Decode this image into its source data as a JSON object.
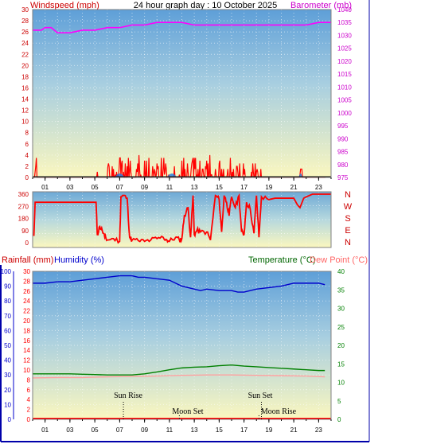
{
  "header": {
    "left_label": "Windspeed (mph)",
    "title": "24 hour graph day : 10 October 2025",
    "right_label": "Barometer (mb)"
  },
  "lower_header": {
    "rainfall_label": "Rainfall (mm)",
    "humidity_label": "Humidity (%)",
    "temperature_label": "Temperature (°C)",
    "dewpoint_label": "Dew Point (°C)"
  },
  "hour_labels": [
    "01",
    "03",
    "05",
    "07",
    "09",
    "11",
    "13",
    "15",
    "17",
    "19",
    "21",
    "23"
  ],
  "compass_labels": [
    "N",
    "W",
    "S",
    "E",
    "N"
  ],
  "colors": {
    "wind": "#ff0000",
    "gust_fill": "#1e78e0",
    "barometer": "#ff00ff",
    "humidity": "#0000cc",
    "temperature": "#008000",
    "dewpoint": "#ffa0a0",
    "rain_axis": "#ff0000",
    "humidity_axis": "#0000cc",
    "temp_axis": "#008000",
    "sky_top": "#6fa8dc",
    "sky_bottom": "#fbf7c0"
  },
  "annotations": {
    "sun_rise": "Sun Rise",
    "moon_set_am": "Moon Set",
    "sun_set": "Sun Set",
    "moon_rise": "Moon Rise"
  },
  "chart_data": [
    {
      "type": "line",
      "name": "windspeed-barometer",
      "y_left": {
        "ticks": [
          0,
          2,
          4,
          6,
          8,
          10,
          12,
          14,
          16,
          18,
          20,
          22,
          24,
          26,
          28,
          30
        ],
        "ylim": [
          0,
          30
        ]
      },
      "y_right": {
        "ticks": [
          975,
          980,
          985,
          990,
          995,
          1000,
          1005,
          1010,
          1015,
          1020,
          1025,
          1030,
          1035,
          1040
        ],
        "ylim": [
          975,
          1040
        ]
      },
      "xlim": [
        0,
        24
      ],
      "barometer": {
        "x": [
          0,
          0.7,
          1.0,
          1.5,
          2.0,
          2.5,
          3,
          4,
          5,
          6,
          7,
          8,
          9,
          10,
          11,
          12,
          13,
          14,
          15,
          16,
          17,
          18,
          19,
          20,
          21,
          22,
          23,
          24
        ],
        "y": [
          1032,
          1032,
          1033,
          1033,
          1031,
          1031,
          1031,
          1032,
          1032,
          1033,
          1033,
          1034,
          1034,
          1035,
          1035,
          1035,
          1034,
          1034,
          1034,
          1034,
          1034,
          1034,
          1034,
          1034,
          1034,
          1034,
          1035,
          1035
        ]
      },
      "wind_active_periods": [
        [
          0.1,
          0.3
        ],
        [
          5.1,
          5.3
        ],
        [
          6.0,
          10.0
        ],
        [
          10.0,
          14.5
        ],
        [
          14.6,
          18.4
        ],
        [
          21.5,
          21.7
        ]
      ],
      "wind_max": 4,
      "grid": true
    },
    {
      "type": "line",
      "name": "wind-direction",
      "y_left": {
        "ticks": [
          0,
          90,
          180,
          270,
          360
        ],
        "ylim": [
          0,
          360
        ]
      },
      "xlim": [
        0,
        24
      ],
      "x": [
        0.1,
        0.2,
        5.1,
        5.2,
        5.4,
        5.6,
        5.8,
        6.0,
        6.5,
        7.0,
        7.1,
        7.3,
        7.6,
        7.8,
        8.0,
        8.5,
        9.0,
        9.5,
        10.0,
        10.5,
        10.8,
        11.0,
        11.5,
        11.8,
        12.0,
        12.2,
        12.5,
        12.7,
        12.9,
        13.0,
        13.2,
        13.5,
        14.0,
        14.3,
        14.7,
        15.0,
        15.2,
        15.4,
        15.6,
        15.8,
        16.0,
        16.3,
        16.6,
        16.8,
        17.0,
        17.2,
        17.5,
        17.8,
        18.0,
        18.2,
        18.4,
        19.0,
        19.5,
        20.0,
        20.5,
        21.0,
        21.3,
        21.5,
        21.8,
        22.0,
        22.5,
        23.0,
        24.0
      ],
      "y": [
        50,
        300,
        300,
        60,
        120,
        90,
        40,
        20,
        30,
        10,
        340,
        350,
        330,
        40,
        20,
        15,
        10,
        20,
        30,
        40,
        20,
        10,
        40,
        20,
        30,
        200,
        260,
        40,
        350,
        60,
        90,
        80,
        80,
        20,
        350,
        320,
        80,
        350,
        300,
        200,
        340,
        260,
        350,
        80,
        60,
        300,
        250,
        70,
        350,
        40,
        340,
        320,
        330,
        330,
        330,
        330,
        280,
        260,
        330,
        340,
        360,
        360,
        360
      ],
      "grid": true
    },
    {
      "type": "line",
      "name": "humidity-temperature",
      "y_left_rain": {
        "ticks": [
          0,
          2,
          4,
          6,
          8,
          10,
          12,
          14,
          16,
          18,
          20,
          22,
          24,
          26,
          28,
          30
        ],
        "ylim": [
          0,
          30
        ]
      },
      "y_left_humidity": {
        "ticks": [
          0,
          10,
          20,
          30,
          40,
          50,
          60,
          70,
          80,
          90,
          100
        ],
        "ylim": [
          0,
          100
        ]
      },
      "y_right_temp": {
        "ticks": [
          0,
          5,
          10,
          15,
          20,
          25,
          30,
          35,
          40
        ],
        "ylim": [
          0,
          40
        ]
      },
      "xlim": [
        0,
        24
      ],
      "humidity": {
        "x": [
          0,
          1,
          2,
          3,
          4,
          5,
          6,
          7,
          7.5,
          8,
          8.5,
          9,
          10,
          11,
          11.5,
          12,
          12.5,
          13,
          13.5,
          14,
          15,
          16,
          16.5,
          17,
          17.5,
          18,
          19,
          20,
          20.5,
          21,
          22,
          23,
          23.5
        ],
        "y": [
          92,
          92,
          93,
          93,
          94,
          95,
          96,
          97,
          97,
          97,
          96,
          96,
          95,
          94,
          92,
          90,
          89,
          88,
          87,
          88,
          87,
          87,
          86,
          86,
          87,
          88,
          89,
          90,
          91,
          92,
          92,
          92,
          91
        ]
      },
      "temperature": {
        "x": [
          0,
          1,
          2,
          3,
          4,
          5,
          6,
          7,
          8,
          9,
          10,
          11,
          12,
          13,
          14,
          15,
          16,
          17,
          18,
          19,
          20,
          21,
          22,
          23,
          23.5
        ],
        "y": [
          12.3,
          12.3,
          12.3,
          12.3,
          12.2,
          12.1,
          12.0,
          12.0,
          12.0,
          12.3,
          12.8,
          13.4,
          13.9,
          14.1,
          14.2,
          14.5,
          14.7,
          14.4,
          14.2,
          14.0,
          13.8,
          13.6,
          13.4,
          13.2,
          13.2
        ]
      },
      "dewpoint": {
        "x": [
          0,
          2,
          4,
          6,
          8,
          10,
          12,
          14,
          16,
          18,
          20,
          22,
          23.5
        ],
        "y": [
          11.2,
          11.3,
          11.3,
          11.5,
          11.6,
          11.7,
          11.9,
          12.0,
          12.0,
          11.9,
          11.8,
          11.7,
          11.5
        ]
      },
      "rainfall": {
        "x": [
          0,
          24
        ],
        "y": [
          0,
          0
        ]
      },
      "sun_rise_hour": 7.3,
      "moon_set_hour": 11.8,
      "sun_set_hour": 18.4,
      "moon_rise_hour": 18.2,
      "grid": true
    }
  ]
}
